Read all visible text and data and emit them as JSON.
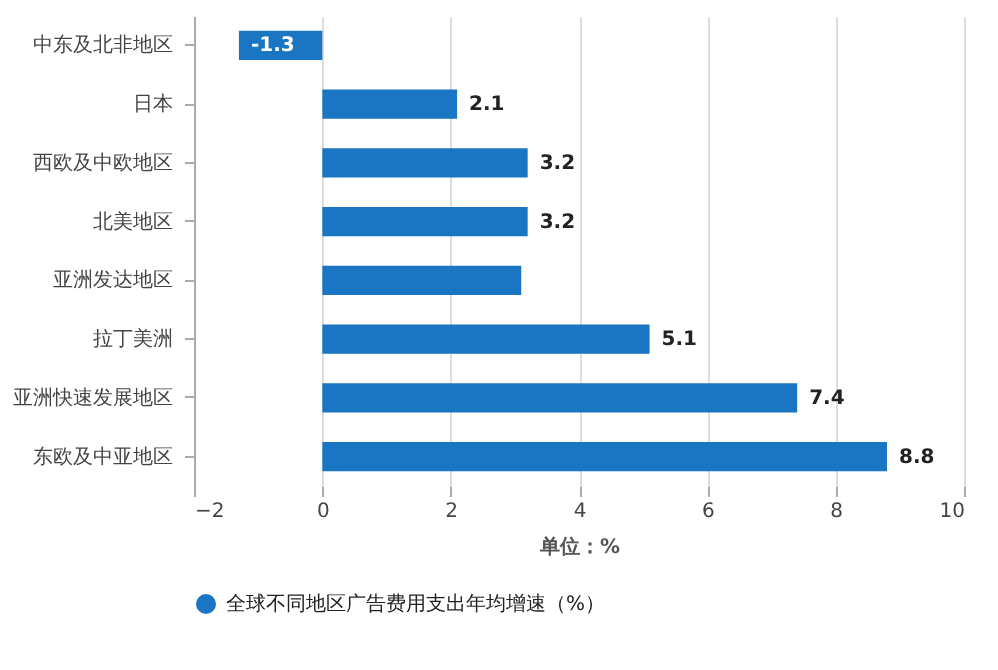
{
  "chart_data": {
    "type": "bar",
    "orientation": "horizontal",
    "xlabel": "单位：%",
    "categories": [
      "中东及北非地区",
      "日本",
      "西欧及中欧地区",
      "北美地区",
      "亚洲发达地区",
      "拉丁美洲",
      "亚洲快速发展地区",
      "东欧及中亚地区"
    ],
    "series": [
      {
        "name": "全球不同地区广告费用支出年均增速（%）",
        "color": "#1a75c2",
        "values": [
          -1.3,
          2.1,
          3.2,
          3.2,
          3.1,
          5.1,
          7.4,
          8.8
        ],
        "value_labels": [
          "-1.3",
          "2.1",
          "3.2",
          "3.2",
          null,
          "5.1",
          "7.4",
          "8.8"
        ]
      }
    ],
    "xlim": [
      -2,
      10
    ],
    "xticks": [
      -2,
      0,
      2,
      4,
      6,
      8,
      10
    ],
    "grid": "x",
    "legend": "bottom"
  }
}
